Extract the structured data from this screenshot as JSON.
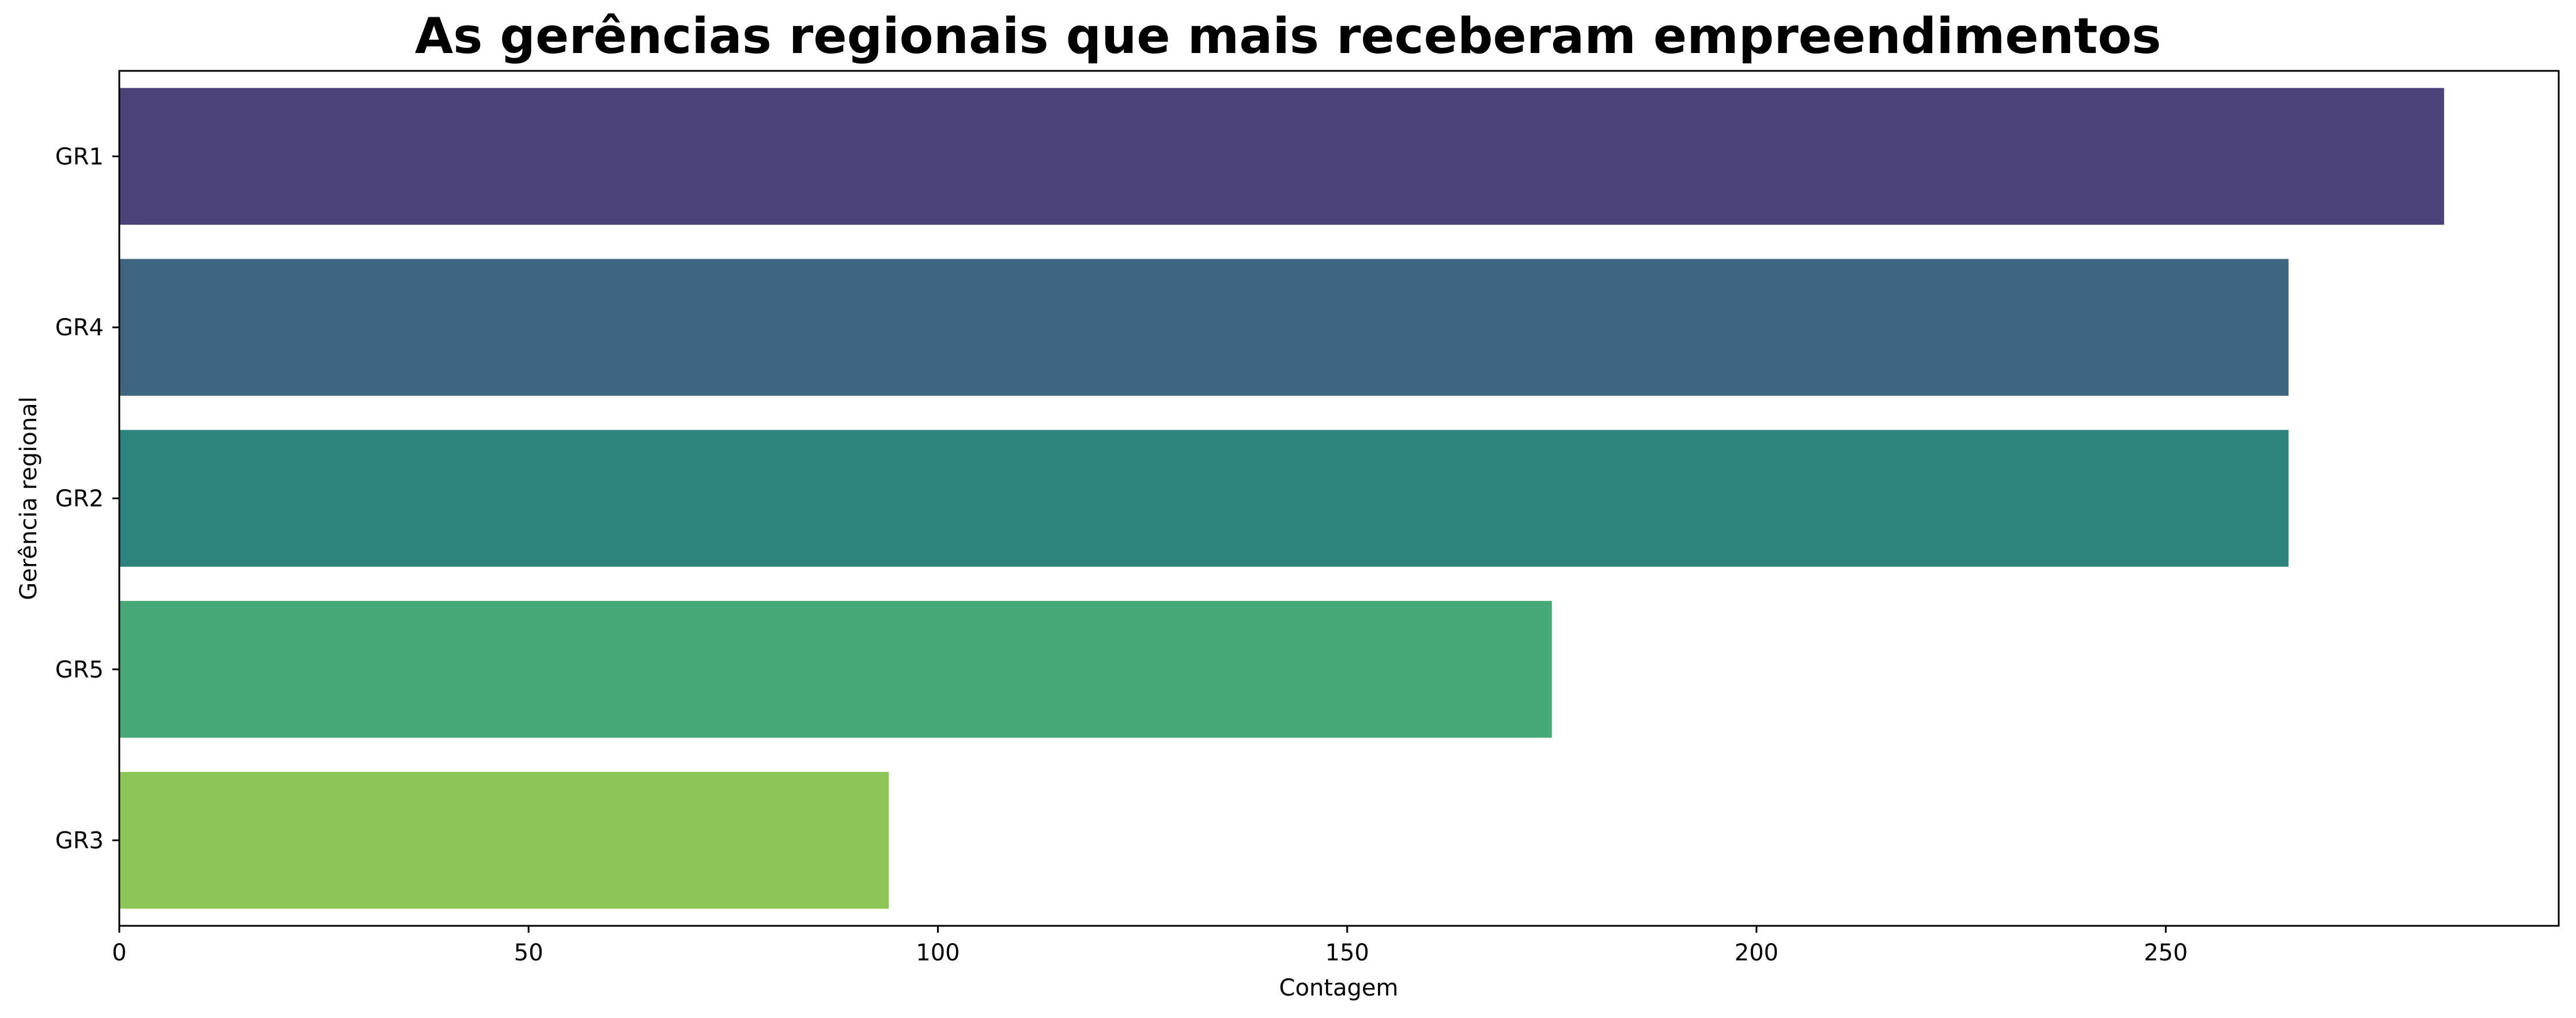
{
  "chart_data": {
    "type": "bar",
    "orientation": "horizontal",
    "title": "As gerências regionais que mais receberam empreendimentos",
    "xlabel": "Contagem",
    "ylabel": "Gerência regional",
    "categories": [
      "GR1",
      "GR4",
      "GR2",
      "GR5",
      "GR3"
    ],
    "values": [
      284,
      265,
      265,
      175,
      94
    ],
    "colors": [
      "#4b427a",
      "#3e6681",
      "#2e837c",
      "#47a877",
      "#8dc656"
    ],
    "xlim": [
      0,
      298
    ],
    "xticks": [
      0,
      50,
      100,
      150,
      200,
      250
    ],
    "xtick_labels": [
      "0",
      "50",
      "100",
      "150",
      "200",
      "250"
    ],
    "grid": false,
    "legend": "none"
  }
}
